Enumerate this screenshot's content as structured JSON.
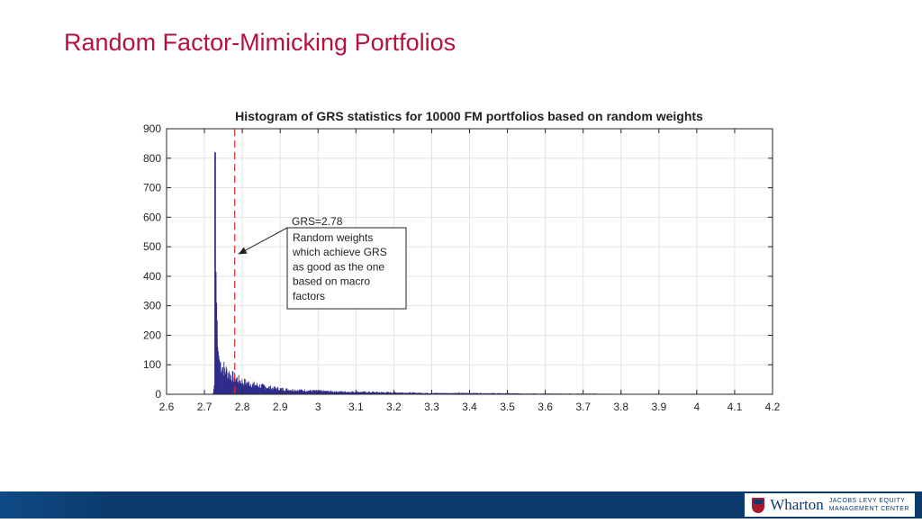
{
  "slide": {
    "title": "Random Factor-Mimicking Portfolios"
  },
  "footer": {
    "brand": "Wharton",
    "center_line1": "JACOBS LEVY EQUITY",
    "center_line2": "MANAGEMENT CENTER",
    "colors": {
      "bar": "#0b3a6b",
      "accent": "#a6192e"
    }
  },
  "chart_data": {
    "type": "bar",
    "title": "Histogram of GRS statistics for 10000 FM portfolios based on random weights",
    "xlabel": "",
    "ylabel": "",
    "xlim": [
      2.6,
      4.2
    ],
    "ylim": [
      0,
      900
    ],
    "xticks": [
      "2.6",
      "2.7",
      "2.8",
      "2.9",
      "3",
      "3.1",
      "3.2",
      "3.3",
      "3.4",
      "3.5",
      "3.6",
      "3.7",
      "3.8",
      "3.9",
      "4",
      "4.1",
      "4.2"
    ],
    "yticks": [
      "0",
      "100",
      "200",
      "300",
      "400",
      "500",
      "600",
      "700",
      "800",
      "900"
    ],
    "grid": true,
    "bar_color": "#2e2a8a",
    "bins": [
      [
        2.722,
        5
      ],
      [
        2.725,
        30
      ],
      [
        2.7265,
        820
      ],
      [
        2.728,
        415
      ],
      [
        2.7295,
        310
      ],
      [
        2.731,
        250
      ],
      [
        2.7325,
        200
      ],
      [
        2.734,
        160
      ],
      [
        2.736,
        140
      ],
      [
        2.738,
        120
      ],
      [
        2.741,
        105
      ],
      [
        2.745,
        95
      ],
      [
        2.75,
        88
      ],
      [
        2.755,
        80
      ],
      [
        2.76,
        74
      ],
      [
        2.765,
        68
      ],
      [
        2.77,
        62
      ],
      [
        2.78,
        55
      ],
      [
        2.79,
        48
      ],
      [
        2.8,
        42
      ],
      [
        2.82,
        36
      ],
      [
        2.84,
        30
      ],
      [
        2.86,
        25
      ],
      [
        2.88,
        21
      ],
      [
        2.9,
        18
      ],
      [
        2.93,
        15
      ],
      [
        2.96,
        13
      ],
      [
        3.0,
        11
      ],
      [
        3.05,
        9
      ],
      [
        3.1,
        8
      ],
      [
        3.15,
        7
      ],
      [
        3.2,
        6
      ],
      [
        3.25,
        5
      ],
      [
        3.3,
        4
      ],
      [
        3.4,
        4
      ],
      [
        3.5,
        3
      ],
      [
        3.6,
        2
      ],
      [
        3.7,
        2
      ],
      [
        3.8,
        1
      ],
      [
        3.9,
        1
      ],
      [
        4.02,
        1
      ]
    ],
    "reference_line": {
      "x": 2.78,
      "color": "#d42a2a",
      "style": "dashed"
    },
    "annotation": {
      "heading": "GRS=2.78",
      "lines": [
        "Random weights",
        "which achieve GRS",
        "as good as the one",
        "based on macro",
        "factors"
      ],
      "arrow_to": [
        2.78,
        420
      ]
    }
  }
}
